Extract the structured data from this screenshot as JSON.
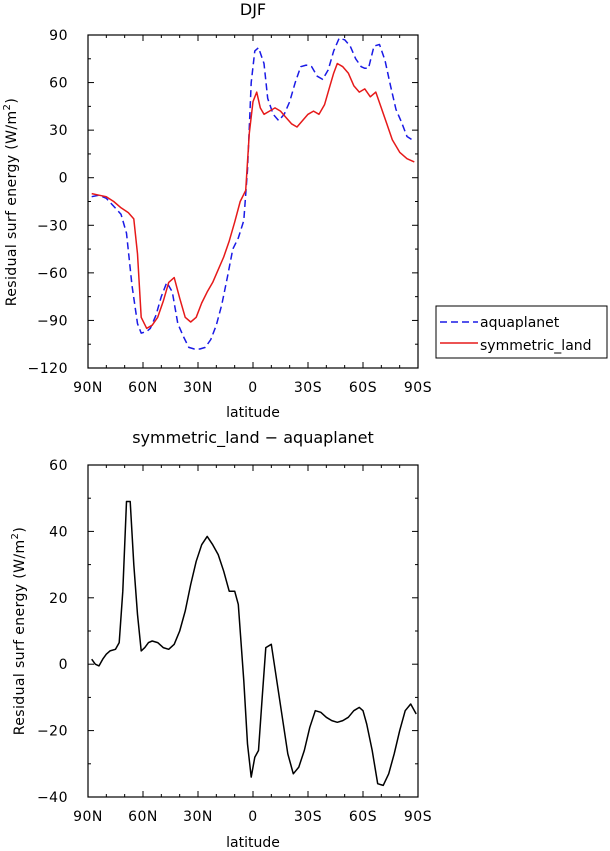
{
  "chart_data": [
    {
      "type": "line",
      "title": "DJF",
      "xlabel": "latitude",
      "ylabel": "Residual surf energy (W/m²)",
      "ylabel_parts": {
        "main": "Residual surf energy (W/m",
        "sup": "2",
        "end": ")"
      },
      "xlim": [
        -90,
        90
      ],
      "ylim": [
        -120,
        90
      ],
      "xticks": [
        -90,
        -60,
        -30,
        0,
        30,
        60,
        90
      ],
      "xtick_labels": [
        "90N",
        "60N",
        "30N",
        "0",
        "30S",
        "60S",
        "90S"
      ],
      "yticks": [
        -120,
        -90,
        -60,
        -30,
        0,
        30,
        60,
        90
      ],
      "ytick_labels": [
        "−120",
        "−90",
        "−60",
        "−30",
        "0",
        "30",
        "60",
        "90"
      ],
      "legend_position": "right",
      "series": [
        {
          "name": "aquaplanet",
          "color": "#1a1ae6",
          "dash": "dashed",
          "x": [
            -88,
            -84,
            -80,
            -76,
            -72,
            -69,
            -66,
            -63,
            -61,
            -58,
            -56,
            -53,
            -50,
            -47,
            -44,
            -41,
            -38,
            -35,
            -32,
            -29,
            -26,
            -23,
            -20,
            -17,
            -14,
            -11,
            -8,
            -5,
            -3,
            -1,
            1,
            3,
            6,
            8,
            11,
            14,
            17,
            20,
            23,
            26,
            29,
            32,
            35,
            38,
            41,
            44,
            47,
            50,
            53,
            56,
            59,
            61,
            63,
            66,
            69,
            72,
            75,
            78,
            81,
            84,
            88
          ],
          "y": [
            -12,
            -11,
            -13,
            -18,
            -23,
            -35,
            -68,
            -92,
            -98,
            -97,
            -95,
            -87,
            -75,
            -66,
            -72,
            -92,
            -100,
            -107,
            -108,
            -108,
            -107,
            -102,
            -93,
            -80,
            -63,
            -45,
            -38,
            -27,
            5,
            60,
            80,
            82,
            72,
            50,
            40,
            36,
            40,
            48,
            60,
            70,
            71,
            70,
            64,
            62,
            68,
            80,
            88,
            87,
            83,
            75,
            70,
            69,
            69,
            83,
            84,
            74,
            58,
            43,
            35,
            26,
            23
          ]
        },
        {
          "name": "symmetric_land",
          "color": "#e61a1a",
          "dash": "solid",
          "x": [
            -88,
            -84,
            -80,
            -76,
            -72,
            -68,
            -65,
            -63,
            -61,
            -58,
            -55,
            -52,
            -49,
            -46,
            -43,
            -40,
            -37,
            -34,
            -31,
            -28,
            -25,
            -22,
            -19,
            -16,
            -13,
            -10,
            -7,
            -4,
            -2,
            0,
            2,
            4,
            6,
            9,
            12,
            15,
            18,
            21,
            24,
            27,
            30,
            33,
            36,
            39,
            42,
            44,
            46,
            49,
            52,
            55,
            58,
            61,
            64,
            67,
            70,
            73,
            76,
            80,
            84,
            88
          ],
          "y": [
            -10,
            -11,
            -12,
            -15,
            -19,
            -22,
            -26,
            -48,
            -88,
            -95,
            -93,
            -88,
            -78,
            -66,
            -63,
            -76,
            -88,
            -91,
            -88,
            -79,
            -72,
            -66,
            -58,
            -50,
            -40,
            -28,
            -15,
            -8,
            28,
            48,
            54,
            44,
            40,
            42,
            44,
            42,
            38,
            34,
            32,
            36,
            40,
            42,
            40,
            46,
            58,
            66,
            72,
            70,
            66,
            58,
            54,
            56,
            51,
            54,
            44,
            34,
            24,
            16,
            12,
            10
          ]
        }
      ]
    },
    {
      "type": "line",
      "title": "symmetric_land − aquaplanet",
      "xlabel": "latitude",
      "ylabel": "Residual surf energy (W/m²)",
      "ylabel_parts": {
        "main": "Residual surf energy (W/m",
        "sup": "2",
        "end": ")"
      },
      "xlim": [
        -90,
        90
      ],
      "ylim": [
        -40,
        60
      ],
      "xticks": [
        -90,
        -60,
        -30,
        0,
        30,
        60,
        90
      ],
      "xtick_labels": [
        "90N",
        "60N",
        "30N",
        "0",
        "30S",
        "60S",
        "90S"
      ],
      "yticks": [
        -40,
        -20,
        0,
        20,
        40,
        60
      ],
      "ytick_labels": [
        "−40",
        "−20",
        "0",
        "20",
        "40",
        "60"
      ],
      "series": [
        {
          "color": "#000000",
          "dash": "solid",
          "x": [
            -88,
            -86,
            -84,
            -82,
            -80,
            -78,
            -75,
            -73,
            -71,
            -69,
            -67,
            -65,
            -63,
            -61,
            -59,
            -57,
            -55,
            -52,
            -49,
            -46,
            -43,
            -40,
            -37,
            -34,
            -31,
            -28,
            -25,
            -22,
            -19,
            -16,
            -13,
            -10,
            -8,
            -5,
            -3,
            -1,
            1,
            3,
            5,
            7,
            10,
            13,
            16,
            19,
            22,
            25,
            28,
            31,
            34,
            37,
            40,
            43,
            46,
            49,
            52,
            55,
            58,
            60,
            62,
            65,
            68,
            71,
            74,
            77,
            80,
            83,
            86,
            89
          ],
          "y": [
            1.5,
            0,
            -0.5,
            1.5,
            3,
            4,
            4.5,
            6.5,
            22,
            49,
            49,
            30,
            15,
            4,
            5,
            6.5,
            7,
            6.5,
            5,
            4.5,
            6,
            10,
            16,
            24,
            31,
            36,
            38.5,
            36,
            33,
            28,
            22,
            22,
            18,
            -5,
            -24,
            -34,
            -28,
            -26,
            -10,
            5,
            6,
            -5,
            -16,
            -27,
            -33,
            -31,
            -26,
            -19,
            -14,
            -14.5,
            -16,
            -17,
            -17.5,
            -17,
            -16,
            -14,
            -13,
            -14,
            -18,
            -26,
            -36,
            -36.5,
            -33,
            -27,
            -20,
            -14,
            -12,
            -15
          ]
        }
      ]
    }
  ],
  "legend": {
    "entries": [
      {
        "label": "aquaplanet",
        "color": "#1a1ae6",
        "dash": "dashed"
      },
      {
        "label": "symmetric_land",
        "color": "#e61a1a",
        "dash": "solid"
      }
    ]
  }
}
